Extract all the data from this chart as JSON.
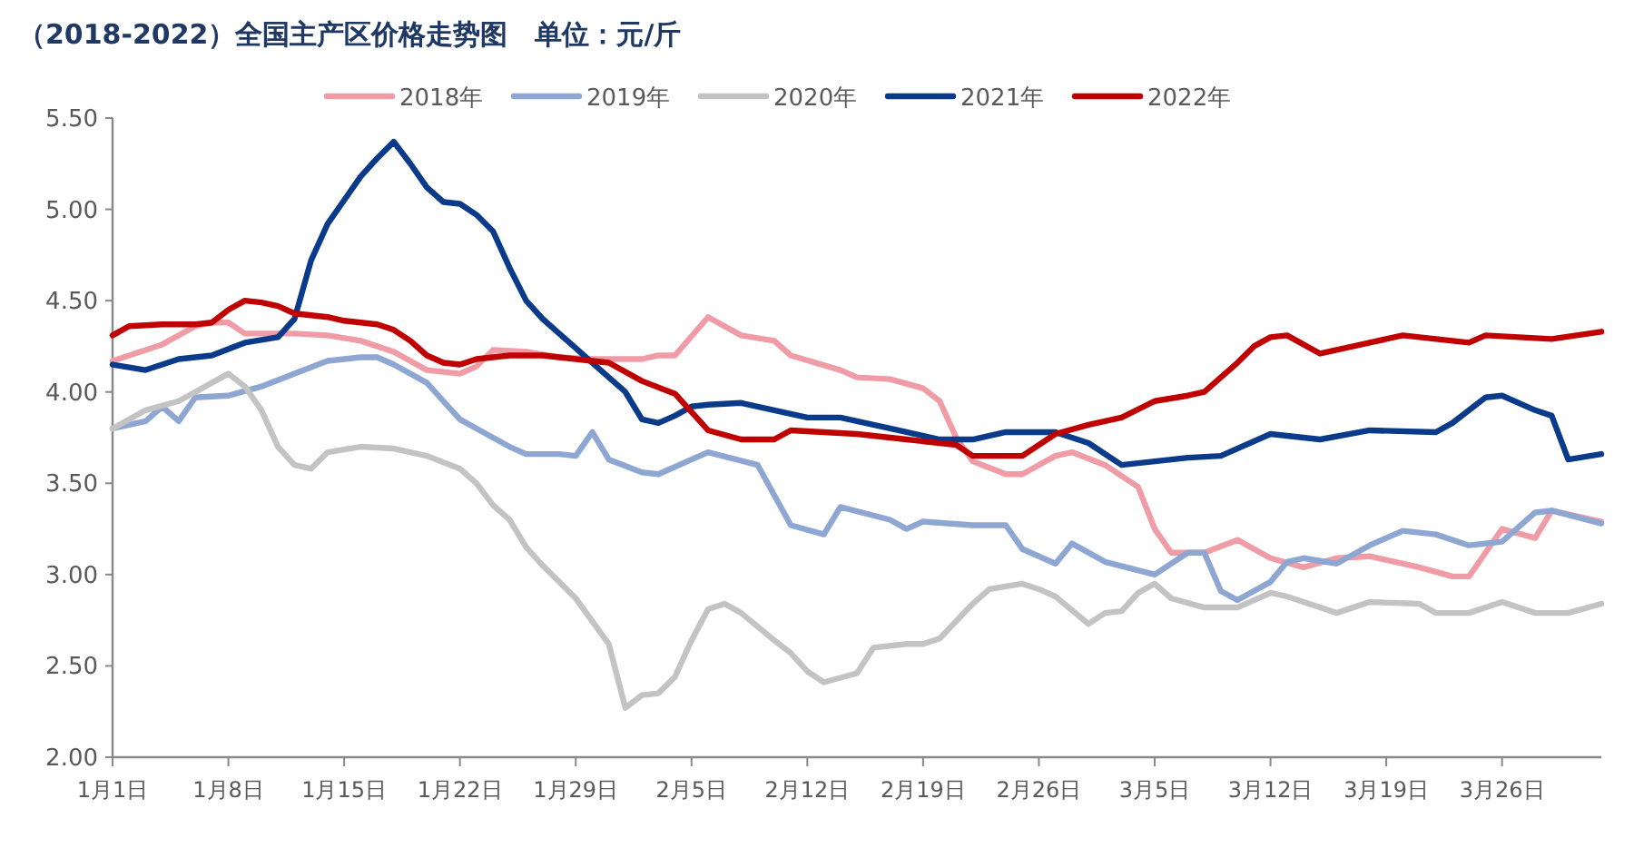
{
  "chart_data": {
    "type": "line",
    "title": "（2018-2022）全国主产区价格走势图　单位：元/斤",
    "xlim": [
      "--01-01",
      "--04-01"
    ],
    "xticks": [
      {
        "value": "--01-01",
        "label": "1月1日"
      },
      {
        "value": "--01-08",
        "label": "1月8日"
      },
      {
        "value": "--01-15",
        "label": "1月15日"
      },
      {
        "value": "--01-22",
        "label": "1月22日"
      },
      {
        "value": "--01-29",
        "label": "1月29日"
      },
      {
        "value": "--02-05",
        "label": "2月5日"
      },
      {
        "value": "--02-12",
        "label": "2月12日"
      },
      {
        "value": "--02-19",
        "label": "2月19日"
      },
      {
        "value": "--02-26",
        "label": "2月26日"
      },
      {
        "value": "--03-05",
        "label": "3月5日"
      },
      {
        "value": "--03-12",
        "label": "3月12日"
      },
      {
        "value": "--03-19",
        "label": "3月19日"
      },
      {
        "value": "--03-26",
        "label": "3月26日"
      }
    ],
    "ylim": [
      2,
      5.5
    ],
    "yticks": [
      {
        "value": 2,
        "label": "2.00"
      },
      {
        "value": 2.5,
        "label": "2.50"
      },
      {
        "value": 3,
        "label": "3.00"
      },
      {
        "value": 3.5,
        "label": "3.50"
      },
      {
        "value": 4,
        "label": "4.00"
      },
      {
        "value": 4.5,
        "label": "4.50"
      },
      {
        "value": 5,
        "label": "5.00"
      },
      {
        "value": 5.5,
        "label": "5.50"
      }
    ],
    "legend": "top",
    "grid": false,
    "series": [
      {
        "name": "2018年",
        "color": "#f09ca6",
        "x": [
          "--01-01",
          "--01-04",
          "--01-06",
          "--01-07",
          "--01-08",
          "--01-09",
          "--01-12",
          "--01-14",
          "--01-16",
          "--01-18",
          "--01-20",
          "--01-22",
          "--01-23",
          "--01-24",
          "--01-26",
          "--01-28",
          "--01-30",
          "--02-02",
          "--02-03",
          "--02-04",
          "--02-06",
          "--02-08",
          "--02-10",
          "--02-11",
          "--02-14",
          "--02-15",
          "--02-17",
          "--02-19",
          "--02-20",
          "--02-21",
          "--02-22",
          "--02-24",
          "--02-25",
          "--02-27",
          "--02-28",
          "--03-02",
          "--03-04",
          "--03-05",
          "--03-06",
          "--03-08",
          "--03-10",
          "--03-12",
          "--03-14",
          "--03-16",
          "--03-18",
          "--03-21",
          "--03-23",
          "--03-24",
          "--03-25",
          "--03-26",
          "--03-28",
          "--03-29",
          "--04-01"
        ],
        "values": [
          4.17,
          4.26,
          4.36,
          4.38,
          4.38,
          4.32,
          4.32,
          4.31,
          4.28,
          4.22,
          4.12,
          4.1,
          4.14,
          4.23,
          4.22,
          4.19,
          4.18,
          4.18,
          4.2,
          4.2,
          4.41,
          4.31,
          4.28,
          4.2,
          4.12,
          4.08,
          4.07,
          4.02,
          3.95,
          3.75,
          3.62,
          3.55,
          3.55,
          3.65,
          3.67,
          3.6,
          3.48,
          3.25,
          3.12,
          3.12,
          3.19,
          3.09,
          3.04,
          3.09,
          3.1,
          3.04,
          2.99,
          2.99,
          3.12,
          3.25,
          3.2,
          3.35,
          3.29
        ]
      },
      {
        "name": "2019年",
        "color": "#8ea6d2",
        "x": [
          "--01-01",
          "--01-03",
          "--01-04",
          "--01-05",
          "--01-06",
          "--01-08",
          "--01-10",
          "--01-12",
          "--01-14",
          "--01-16",
          "--01-17",
          "--01-18",
          "--01-20",
          "--01-21",
          "--01-22",
          "--01-23",
          "--01-25",
          "--01-26",
          "--01-28",
          "--01-29",
          "--01-30",
          "--01-31",
          "--02-02",
          "--02-03",
          "--02-05",
          "--02-06",
          "--02-09",
          "--02-11",
          "--02-13",
          "--02-14",
          "--02-17",
          "--02-18",
          "--02-19",
          "--02-22",
          "--02-24",
          "--02-25",
          "--02-27",
          "--02-28",
          "--03-02",
          "--03-05",
          "--03-07",
          "--03-08",
          "--03-09",
          "--03-10",
          "--03-12",
          "--03-13",
          "--03-14",
          "--03-16",
          "--03-18",
          "--03-20",
          "--03-22",
          "--03-24",
          "--03-26",
          "--03-28",
          "--03-29",
          "--04-01"
        ],
        "values": [
          3.8,
          3.84,
          3.92,
          3.84,
          3.97,
          3.98,
          4.03,
          4.1,
          4.17,
          4.19,
          4.19,
          4.15,
          4.05,
          3.95,
          3.85,
          3.8,
          3.7,
          3.66,
          3.66,
          3.65,
          3.78,
          3.63,
          3.56,
          3.55,
          3.63,
          3.67,
          3.6,
          3.27,
          3.22,
          3.37,
          3.3,
          3.25,
          3.29,
          3.27,
          3.27,
          3.14,
          3.06,
          3.17,
          3.07,
          3.0,
          3.12,
          3.12,
          2.91,
          2.86,
          2.96,
          3.07,
          3.09,
          3.06,
          3.16,
          3.24,
          3.22,
          3.16,
          3.18,
          3.34,
          3.35,
          3.28
        ]
      },
      {
        "name": "2020年",
        "color": "#c3c3c3",
        "x": [
          "--01-01",
          "--01-03",
          "--01-05",
          "--01-06",
          "--01-07",
          "--01-08",
          "--01-09",
          "--01-10",
          "--01-11",
          "--01-12",
          "--01-13",
          "--01-14",
          "--01-16",
          "--01-18",
          "--01-20",
          "--01-22",
          "--01-23",
          "--01-24",
          "--01-25",
          "--01-26",
          "--01-27",
          "--01-29",
          "--01-31",
          "--02-01",
          "--02-02",
          "--02-03",
          "--02-04",
          "--02-05",
          "--02-06",
          "--02-07",
          "--02-08",
          "--02-10",
          "--02-11",
          "--02-12",
          "--02-13",
          "--02-15",
          "--02-16",
          "--02-18",
          "--02-19",
          "--02-20",
          "--02-22",
          "--02-23",
          "--02-25",
          "--02-26",
          "--02-27",
          "--03-01",
          "--03-02",
          "--03-03",
          "--03-04",
          "--03-05",
          "--03-06",
          "--03-08",
          "--03-10",
          "--03-12",
          "--03-13",
          "--03-15",
          "--03-16",
          "--03-18",
          "--03-21",
          "--03-22",
          "--03-24",
          "--03-26",
          "--03-28",
          "--03-30",
          "--04-01"
        ],
        "values": [
          3.8,
          3.9,
          3.95,
          4.0,
          4.05,
          4.1,
          4.03,
          3.9,
          3.7,
          3.6,
          3.58,
          3.67,
          3.7,
          3.69,
          3.65,
          3.58,
          3.5,
          3.38,
          3.3,
          3.15,
          3.05,
          2.87,
          2.62,
          2.27,
          2.34,
          2.35,
          2.44,
          2.64,
          2.81,
          2.84,
          2.79,
          2.64,
          2.57,
          2.47,
          2.41,
          2.46,
          2.6,
          2.62,
          2.62,
          2.65,
          2.84,
          2.92,
          2.95,
          2.92,
          2.88,
          2.73,
          2.79,
          2.8,
          2.9,
          2.95,
          2.87,
          2.82,
          2.82,
          2.9,
          2.88,
          2.82,
          2.79,
          2.85,
          2.84,
          2.79,
          2.79,
          2.85,
          2.79,
          2.79,
          2.84
        ]
      },
      {
        "name": "2021年",
        "color": "#0a3a8a",
        "x": [
          "--01-01",
          "--01-03",
          "--01-05",
          "--01-07",
          "--01-09",
          "--01-11",
          "--01-12",
          "--01-13",
          "--01-14",
          "--01-15",
          "--01-16",
          "--01-17",
          "--01-18",
          "--01-19",
          "--01-20",
          "--01-21",
          "--01-22",
          "--01-23",
          "--01-24",
          "--01-25",
          "--01-26",
          "--01-27",
          "--01-28",
          "--01-29",
          "--01-30",
          "--01-31",
          "--02-01",
          "--02-02",
          "--02-03",
          "--02-04",
          "--02-05",
          "--02-06",
          "--02-08",
          "--02-10",
          "--02-12",
          "--02-14",
          "--02-16",
          "--02-18",
          "--02-20",
          "--02-22",
          "--02-24",
          "--02-26",
          "--02-27",
          "--03-01",
          "--03-03",
          "--03-05",
          "--03-07",
          "--03-09",
          "--03-12",
          "--03-15",
          "--03-18",
          "--03-22",
          "--03-23",
          "--03-25",
          "--03-26",
          "--03-28",
          "--03-29",
          "--03-30",
          "--04-01"
        ],
        "values": [
          4.15,
          4.12,
          4.18,
          4.2,
          4.27,
          4.3,
          4.4,
          4.72,
          4.92,
          5.05,
          5.18,
          5.28,
          5.37,
          5.25,
          5.12,
          5.04,
          5.03,
          4.97,
          4.88,
          4.68,
          4.5,
          4.4,
          4.32,
          4.24,
          4.16,
          4.08,
          4.0,
          3.85,
          3.83,
          3.87,
          3.92,
          3.93,
          3.94,
          3.9,
          3.86,
          3.86,
          3.82,
          3.78,
          3.74,
          3.74,
          3.78,
          3.78,
          3.78,
          3.72,
          3.6,
          3.62,
          3.64,
          3.65,
          3.77,
          3.74,
          3.79,
          3.78,
          3.83,
          3.97,
          3.98,
          3.9,
          3.87,
          3.63,
          3.66
        ]
      },
      {
        "name": "2022年",
        "color": "#c00000",
        "x": [
          "--01-01",
          "--01-02",
          "--01-04",
          "--01-06",
          "--01-07",
          "--01-08",
          "--01-09",
          "--01-10",
          "--01-11",
          "--01-12",
          "--01-14",
          "--01-15",
          "--01-17",
          "--01-18",
          "--01-19",
          "--01-20",
          "--01-21",
          "--01-22",
          "--01-23",
          "--01-25",
          "--01-27",
          "--01-29",
          "--01-31",
          "--02-02",
          "--02-04",
          "--02-06",
          "--02-08",
          "--02-10",
          "--02-11",
          "--02-15",
          "--02-18",
          "--02-21",
          "--02-22",
          "--02-25",
          "--02-27",
          "--03-01",
          "--03-03",
          "--03-05",
          "--03-07",
          "--03-08",
          "--03-09",
          "--03-10",
          "--03-11",
          "--03-12",
          "--03-13",
          "--03-15",
          "--03-18",
          "--03-20",
          "--03-21",
          "--03-24",
          "--03-25",
          "--03-29",
          "--04-01"
        ],
        "values": [
          4.31,
          4.36,
          4.37,
          4.37,
          4.38,
          4.45,
          4.5,
          4.49,
          4.47,
          4.43,
          4.41,
          4.39,
          4.37,
          4.34,
          4.28,
          4.2,
          4.16,
          4.15,
          4.18,
          4.2,
          4.2,
          4.18,
          4.16,
          4.06,
          3.99,
          3.79,
          3.74,
          3.74,
          3.79,
          3.77,
          3.74,
          3.71,
          3.65,
          3.65,
          3.77,
          3.82,
          3.86,
          3.95,
          3.98,
          4.0,
          4.08,
          4.16,
          4.25,
          4.3,
          4.31,
          4.21,
          4.27,
          4.31,
          4.3,
          4.27,
          4.31,
          4.29,
          4.33
        ]
      }
    ]
  }
}
